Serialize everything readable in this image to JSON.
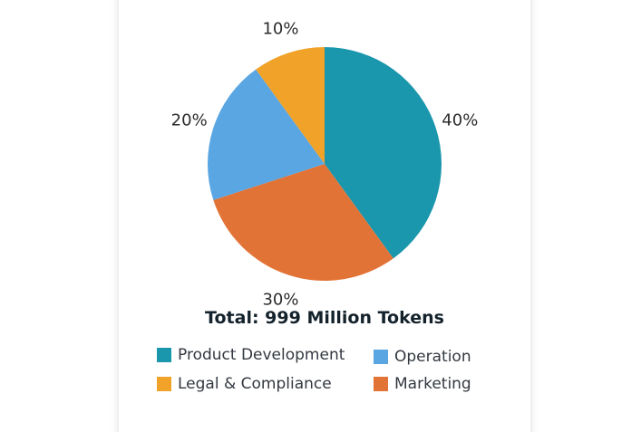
{
  "chart_data": {
    "type": "pie",
    "title": "Total: 999 Million Tokens",
    "slices": [
      {
        "name": "Product Development",
        "value": 40,
        "label": "40%",
        "color": "#1a96ad"
      },
      {
        "name": "Marketing",
        "value": 30,
        "label": "30%",
        "color": "#e27336"
      },
      {
        "name": "Operation",
        "value": 20,
        "label": "20%",
        "color": "#5aa6e2"
      },
      {
        "name": "Legal & Compliance",
        "value": 10,
        "label": "10%",
        "color": "#f0a229"
      }
    ],
    "legend": [
      {
        "name": "Product Development",
        "color": "#1a96ad"
      },
      {
        "name": "Operation",
        "color": "#5aa6e2"
      },
      {
        "name": "Legal & Compliance",
        "color": "#f0a229"
      },
      {
        "name": "Marketing",
        "color": "#e27336"
      }
    ],
    "legend_placement": "bottom"
  }
}
